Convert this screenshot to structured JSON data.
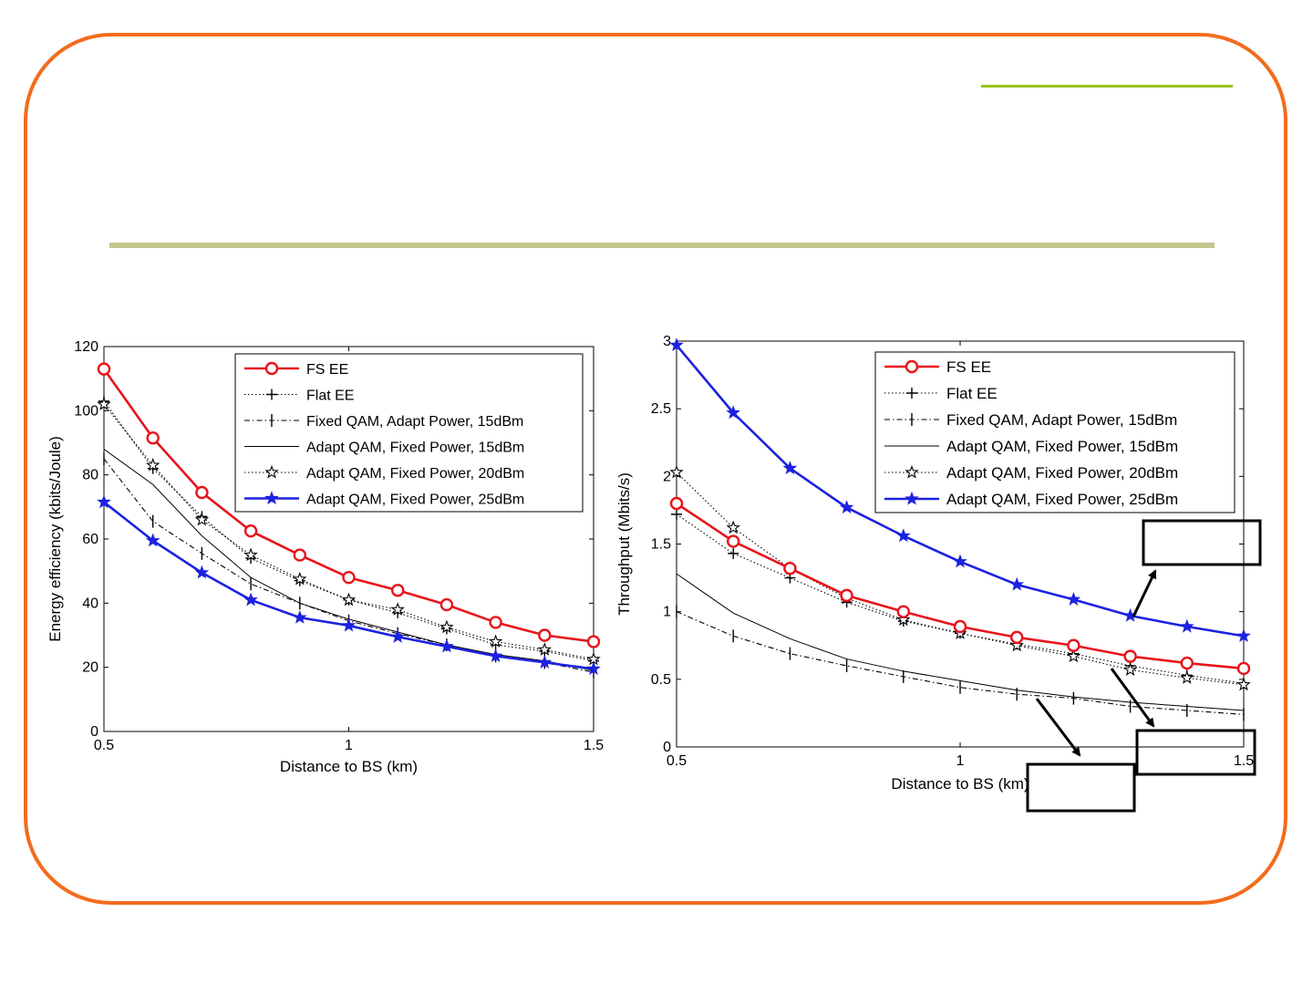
{
  "colors": {
    "frame": "#f26c1d",
    "accent_top": "#9ac11e",
    "accent_mid": "#c3c88e",
    "red": "#e8141b",
    "blue": "#1c22e0"
  },
  "chart_data": [
    {
      "type": "line",
      "xlabel": "Distance to BS (km)",
      "ylabel": "Energy efficiency (kbits/Joule)",
      "xlim": [
        0.5,
        1.5
      ],
      "ylim": [
        0,
        120
      ],
      "xticks": [
        "0.5",
        "1",
        "1.5"
      ],
      "yticks": [
        "0",
        "20",
        "40",
        "60",
        "80",
        "100",
        "120"
      ],
      "grid": false,
      "legend": "top-right",
      "x": [
        0.5,
        0.6,
        0.7,
        0.8,
        0.9,
        1.0,
        1.1,
        1.2,
        1.3,
        1.4,
        1.5
      ],
      "series": [
        {
          "name": "FS EE",
          "style": "solid",
          "marker": "circle",
          "color": "#e8141b",
          "values": [
            113,
            91.5,
            74.5,
            62.5,
            55,
            48,
            44,
            39.5,
            34,
            30,
            28
          ]
        },
        {
          "name": "Flat EE",
          "style": "dotted",
          "marker": "plus",
          "color": "#000000",
          "values": [
            103,
            82,
            67,
            54,
            47,
            41,
            37,
            32,
            27,
            25,
            22
          ]
        },
        {
          "name": "Fixed QAM, Adapt Power, 15dBm",
          "style": "dashdot",
          "marker": "tick",
          "color": "#000000",
          "values": [
            85,
            65.5,
            55.5,
            46,
            40,
            34.5,
            30.5,
            27,
            23.5,
            21.5,
            18.5
          ]
        },
        {
          "name": "Adapt QAM, Fixed Power, 15dBm",
          "style": "solid-thin",
          "marker": "none",
          "color": "#000000",
          "values": [
            88,
            77,
            61,
            48,
            40,
            35,
            31,
            27,
            24,
            22,
            19
          ]
        },
        {
          "name": "Adapt QAM, Fixed Power, 20dBm",
          "style": "dotted",
          "marker": "star",
          "color": "#000000",
          "values": [
            102,
            83,
            66,
            55,
            47.5,
            41,
            38,
            32.5,
            28,
            25.5,
            22.5
          ]
        },
        {
          "name": "Adapt QAM, Fixed Power, 25dBm",
          "style": "solid",
          "marker": "star-filled",
          "color": "#1c22e0",
          "values": [
            71.5,
            59.5,
            49.5,
            41,
            35.5,
            33,
            29.5,
            26.5,
            23.5,
            21.5,
            19.5
          ]
        }
      ]
    },
    {
      "type": "line",
      "xlabel": "Distance to BS (km)",
      "ylabel": "Throughput (Mbits/s)",
      "xlim": [
        0.5,
        1.5
      ],
      "ylim": [
        0,
        3
      ],
      "xticks": [
        "0.5",
        "1",
        "1.5"
      ],
      "yticks": [
        "0",
        "0.5",
        "1",
        "1.5",
        "2",
        "2.5",
        "3"
      ],
      "grid": false,
      "legend": "top-right",
      "x": [
        0.5,
        0.6,
        0.7,
        0.8,
        0.9,
        1.0,
        1.1,
        1.2,
        1.3,
        1.4,
        1.5
      ],
      "series": [
        {
          "name": "FS EE",
          "style": "solid",
          "marker": "circle",
          "color": "#e8141b",
          "values": [
            1.8,
            1.52,
            1.32,
            1.12,
            1.0,
            0.89,
            0.81,
            0.75,
            0.67,
            0.62,
            0.58
          ]
        },
        {
          "name": "Flat EE",
          "style": "dotted",
          "marker": "plus",
          "color": "#000000",
          "values": [
            1.72,
            1.43,
            1.25,
            1.07,
            0.93,
            0.84,
            0.76,
            0.69,
            0.6,
            0.53,
            0.47
          ]
        },
        {
          "name": "Fixed QAM, Adapt Power, 15dBm",
          "style": "dashdot",
          "marker": "tick",
          "color": "#000000",
          "values": [
            1.0,
            0.82,
            0.69,
            0.6,
            0.52,
            0.44,
            0.39,
            0.36,
            0.3,
            0.27,
            0.24
          ]
        },
        {
          "name": "Adapt QAM, Fixed Power, 15dBm",
          "style": "solid-thin",
          "marker": "none",
          "color": "#000000",
          "values": [
            1.28,
            0.99,
            0.8,
            0.65,
            0.56,
            0.49,
            0.42,
            0.37,
            0.33,
            0.3,
            0.27
          ]
        },
        {
          "name": "Adapt QAM, Fixed Power, 20dBm",
          "style": "dotted",
          "marker": "star",
          "color": "#000000",
          "values": [
            2.03,
            1.62,
            1.32,
            1.1,
            0.94,
            0.84,
            0.75,
            0.67,
            0.57,
            0.51,
            0.46
          ]
        },
        {
          "name": "Adapt QAM, Fixed Power, 25dBm",
          "style": "solid",
          "marker": "star-filled",
          "color": "#1c22e0",
          "values": [
            2.97,
            2.47,
            2.06,
            1.77,
            1.56,
            1.37,
            1.2,
            1.09,
            0.97,
            0.89,
            0.82
          ]
        }
      ]
    }
  ]
}
